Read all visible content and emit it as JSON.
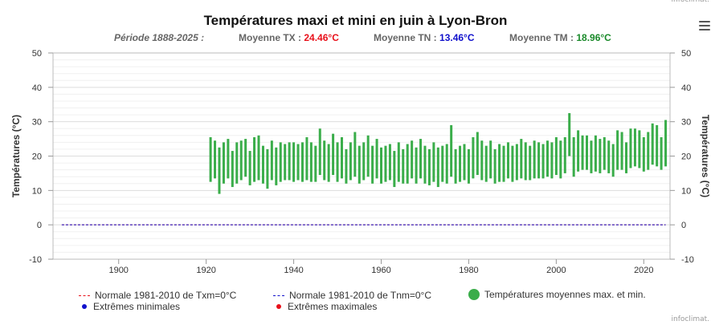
{
  "credit": "infoclimat.",
  "title": "Températures maxi et mini en juin à Lyon-Bron",
  "subtitle": {
    "period": "Période 1888-2025 :",
    "tx_label": "Moyenne TX :",
    "tx_value": "24.46°C",
    "tn_label": "Moyenne TN :",
    "tn_value": "13.46°C",
    "tm_label": "Moyenne TM :",
    "tm_value": "18.96°C"
  },
  "legend": {
    "normal_txm": "Normale 1981-2010 de Txm=0°C",
    "normal_tnm": "Normale 1981-2010 de Tnm=0°C",
    "mean_temps": "Températures moyennes max. et min.",
    "extreme_min": "Extrêmes minimales",
    "extreme_max": "Extrêmes maximales"
  },
  "colors": {
    "range_bar": "#3aad4a",
    "normal_max": "#e8101a",
    "normal_min": "#1111cc"
  },
  "chart_data": {
    "type": "bar",
    "title": "Températures maxi et mini en juin à Lyon-Bron",
    "ylabel": "Températures (°C)",
    "ylabel_right": "Températures (°C)",
    "xlim": [
      1885,
      2026
    ],
    "ylim": [
      -10,
      50
    ],
    "xticks": [
      1900,
      1920,
      1940,
      1960,
      1980,
      2000,
      2020
    ],
    "yticks": [
      -10,
      0,
      10,
      20,
      30,
      40,
      50
    ],
    "grid": true,
    "legend_position": "bottom",
    "normal_txm": 0,
    "normal_tnm": 0,
    "normal_span": [
      1887,
      2025
    ],
    "series": [
      {
        "name": "Températures moyennes max. et min.",
        "x": [
          1921,
          1922,
          1923,
          1924,
          1925,
          1926,
          1927,
          1928,
          1929,
          1930,
          1931,
          1932,
          1933,
          1934,
          1935,
          1936,
          1937,
          1938,
          1939,
          1940,
          1941,
          1942,
          1943,
          1944,
          1945,
          1946,
          1947,
          1948,
          1949,
          1950,
          1951,
          1952,
          1953,
          1954,
          1955,
          1956,
          1957,
          1958,
          1959,
          1960,
          1961,
          1962,
          1963,
          1964,
          1965,
          1966,
          1967,
          1968,
          1969,
          1970,
          1971,
          1972,
          1973,
          1974,
          1975,
          1976,
          1977,
          1978,
          1979,
          1980,
          1981,
          1982,
          1983,
          1984,
          1985,
          1986,
          1987,
          1988,
          1989,
          1990,
          1991,
          1992,
          1993,
          1994,
          1995,
          1996,
          1997,
          1998,
          1999,
          2000,
          2001,
          2002,
          2003,
          2004,
          2005,
          2006,
          2007,
          2008,
          2009,
          2010,
          2011,
          2012,
          2013,
          2014,
          2015,
          2016,
          2017,
          2018,
          2019,
          2020,
          2021,
          2022,
          2023,
          2024,
          2025
        ],
        "tmax": [
          25.5,
          24.5,
          22.5,
          24.0,
          25.0,
          21.5,
          24.0,
          24.5,
          25.0,
          21.5,
          25.5,
          26.0,
          23.0,
          22.0,
          24.5,
          22.5,
          24.0,
          23.5,
          24.0,
          24.0,
          23.5,
          24.0,
          25.5,
          24.0,
          23.0,
          28.0,
          24.5,
          23.5,
          26.5,
          24.0,
          25.5,
          22.0,
          24.0,
          27.0,
          23.0,
          24.0,
          26.0,
          23.0,
          25.0,
          22.5,
          23.0,
          23.5,
          21.5,
          24.0,
          22.0,
          23.5,
          24.5,
          22.5,
          25.0,
          23.0,
          22.0,
          24.0,
          22.5,
          23.0,
          23.5,
          29.0,
          22.0,
          23.0,
          23.5,
          22.0,
          25.5,
          27.0,
          24.5,
          23.0,
          24.5,
          22.0,
          23.5,
          23.0,
          24.0,
          23.0,
          23.5,
          25.0,
          24.0,
          23.0,
          24.5,
          24.0,
          23.5,
          24.5,
          24.0,
          25.5,
          24.5,
          25.5,
          32.5,
          25.5,
          27.5,
          26.0,
          26.0,
          24.5,
          26.0,
          25.0,
          25.5,
          24.5,
          23.5,
          27.5,
          27.0,
          24.0,
          28.0,
          28.0,
          27.5,
          25.5,
          27.0,
          29.5,
          29.0,
          25.5,
          30.5
        ],
        "tmin": [
          12.5,
          13.5,
          9.0,
          12.0,
          13.5,
          11.0,
          12.0,
          13.0,
          14.0,
          11.5,
          12.5,
          13.0,
          12.0,
          10.5,
          13.0,
          11.5,
          12.5,
          13.0,
          13.0,
          12.5,
          13.0,
          12.5,
          13.0,
          12.5,
          12.5,
          14.5,
          13.0,
          12.5,
          14.5,
          12.5,
          13.5,
          12.0,
          13.0,
          14.0,
          12.0,
          13.0,
          14.0,
          12.0,
          13.5,
          12.0,
          12.5,
          13.0,
          11.0,
          12.5,
          12.0,
          12.0,
          13.5,
          12.0,
          13.5,
          12.0,
          11.5,
          12.5,
          11.0,
          12.5,
          12.0,
          14.0,
          12.0,
          12.5,
          13.0,
          12.0,
          13.5,
          14.5,
          13.0,
          12.5,
          13.5,
          12.0,
          12.5,
          12.5,
          13.5,
          12.5,
          13.0,
          13.5,
          13.0,
          13.0,
          13.5,
          13.5,
          13.5,
          14.0,
          13.5,
          14.5,
          13.5,
          15.0,
          20.0,
          14.0,
          15.5,
          16.0,
          16.0,
          15.0,
          15.5,
          15.0,
          16.0,
          15.0,
          14.0,
          16.0,
          16.0,
          15.0,
          16.5,
          17.0,
          16.5,
          15.5,
          16.0,
          17.5,
          17.0,
          16.0,
          17.0
        ]
      }
    ]
  }
}
